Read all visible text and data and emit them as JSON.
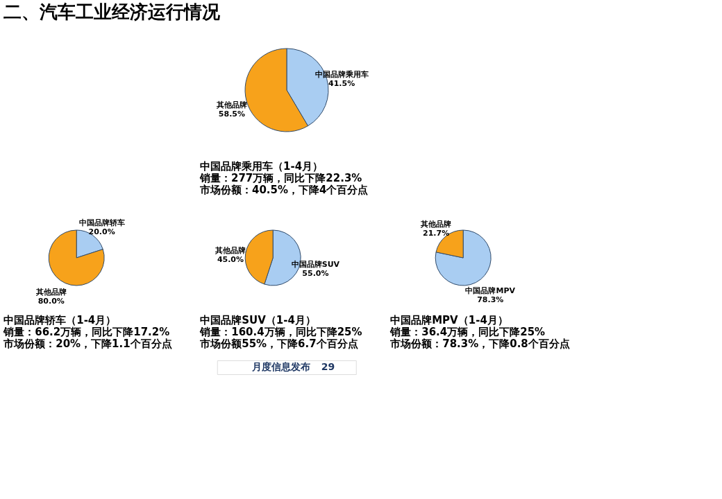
{
  "chart_data": [
    {
      "type": "pie",
      "title": "二、汽车工业经济运行情况",
      "categories": [
        "中国品牌乘用车",
        "其他品牌"
      ],
      "values": [
        41.5,
        58.5
      ],
      "colors": [
        "#a9cdf2",
        "#f7a21b"
      ],
      "value_labels": [
        "41.5%",
        "58.5%"
      ],
      "legend": false,
      "annotations": [
        "中国品牌乘用车（1-4月）",
        "销量：277万辆，同比下降22.3%",
        "市场份额：40.5%，下降4个百分点"
      ]
    },
    {
      "type": "pie",
      "categories": [
        "中国品牌轿车",
        "其他品牌"
      ],
      "values": [
        20.0,
        80.0
      ],
      "colors": [
        "#a9cdf2",
        "#f7a21b"
      ],
      "value_labels": [
        "20.0%",
        "80.0%"
      ],
      "legend": false,
      "annotations": [
        "中国品牌轿车（1-4月）",
        "销量：66.2万辆，同比下降17.2%",
        "市场份额：20%，下降1.1个百分点"
      ]
    },
    {
      "type": "pie",
      "categories": [
        "中国品牌SUV",
        "其他品牌"
      ],
      "values": [
        55.0,
        45.0
      ],
      "colors": [
        "#a9cdf2",
        "#f7a21b"
      ],
      "value_labels": [
        "55.0%",
        "45.0%"
      ],
      "legend": false,
      "annotations": [
        "中国品牌SUV（1-4月）",
        "销量：160.4万辆，同比下降25%",
        "市场份额55%，下降6.7个百分点"
      ]
    },
    {
      "type": "pie",
      "categories": [
        "中国品牌MPV",
        "其他品牌"
      ],
      "values": [
        78.3,
        21.7
      ],
      "colors": [
        "#a9cdf2",
        "#f7a21b"
      ],
      "value_labels": [
        "78.3%",
        "21.7%"
      ],
      "legend": false,
      "annotations": [
        "中国品牌MPV（1-4月）",
        "销量：36.4万辆，同比下降25%",
        "市场份额：78.3%，下降0.8个百分点"
      ]
    },
    {
      "type": "other",
      "annotations": [
        "月度信息发布",
        "29"
      ]
    }
  ]
}
